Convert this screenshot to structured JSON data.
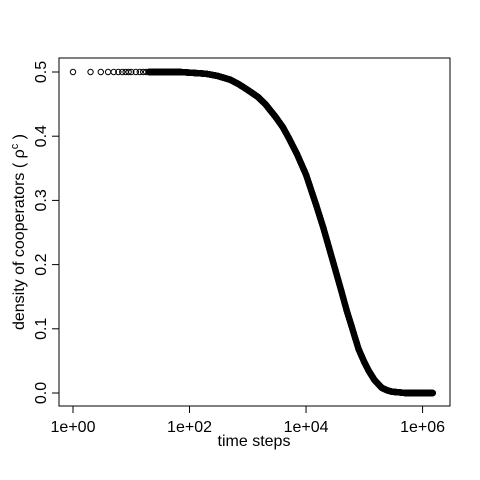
{
  "chart_data": {
    "type": "scatter",
    "title": "",
    "xlabel": "time steps",
    "ylabel": "density of cooperators ( ρ<sup>c</sup> )",
    "ylabel_main": "density of cooperators ( ρ",
    "ylabel_sup": "c",
    "ylabel_close": " )",
    "x_scale": "log10",
    "xlim": [
      1,
      1700000
    ],
    "ylim": [
      0.0,
      0.5
    ],
    "x_ticks": [
      1,
      100,
      10000,
      1000000
    ],
    "x_tick_labels": [
      "1e+00",
      "1e+02",
      "1e+04",
      "1e+06"
    ],
    "y_ticks": [
      0.0,
      0.1,
      0.2,
      0.3,
      0.4,
      0.5
    ],
    "y_tick_labels": [
      "0.0",
      "0.1",
      "0.2",
      "0.3",
      "0.4",
      "0.5"
    ],
    "grid": false,
    "legend": "none",
    "marker": "open-circle",
    "series": [
      {
        "x": [
          1,
          2,
          3,
          4,
          5,
          6,
          7,
          8,
          9,
          10,
          12,
          14,
          16,
          18,
          20,
          25,
          30,
          40,
          50,
          70,
          100,
          150,
          200,
          300,
          500,
          700,
          1000,
          1500,
          2000,
          3000,
          4000,
          5000,
          7000,
          10000,
          15000,
          20000,
          30000,
          40000,
          50000,
          60000,
          70000,
          80000,
          100000,
          120000,
          150000,
          200000,
          250000,
          300000,
          400000,
          500000,
          700000,
          1000000,
          1500000
        ],
        "y": [
          0.5,
          0.5,
          0.5,
          0.5,
          0.5,
          0.5,
          0.5,
          0.5,
          0.5,
          0.5,
          0.5,
          0.5,
          0.5,
          0.5,
          0.5,
          0.5,
          0.5,
          0.5,
          0.5,
          0.5,
          0.499,
          0.498,
          0.497,
          0.494,
          0.488,
          0.481,
          0.472,
          0.461,
          0.45,
          0.43,
          0.414,
          0.398,
          0.372,
          0.34,
          0.292,
          0.256,
          0.2,
          0.16,
          0.128,
          0.105,
          0.085,
          0.068,
          0.048,
          0.034,
          0.02,
          0.008,
          0.004,
          0.002,
          0.001,
          0.0,
          0.0,
          0.0,
          0.0
        ]
      }
    ]
  }
}
